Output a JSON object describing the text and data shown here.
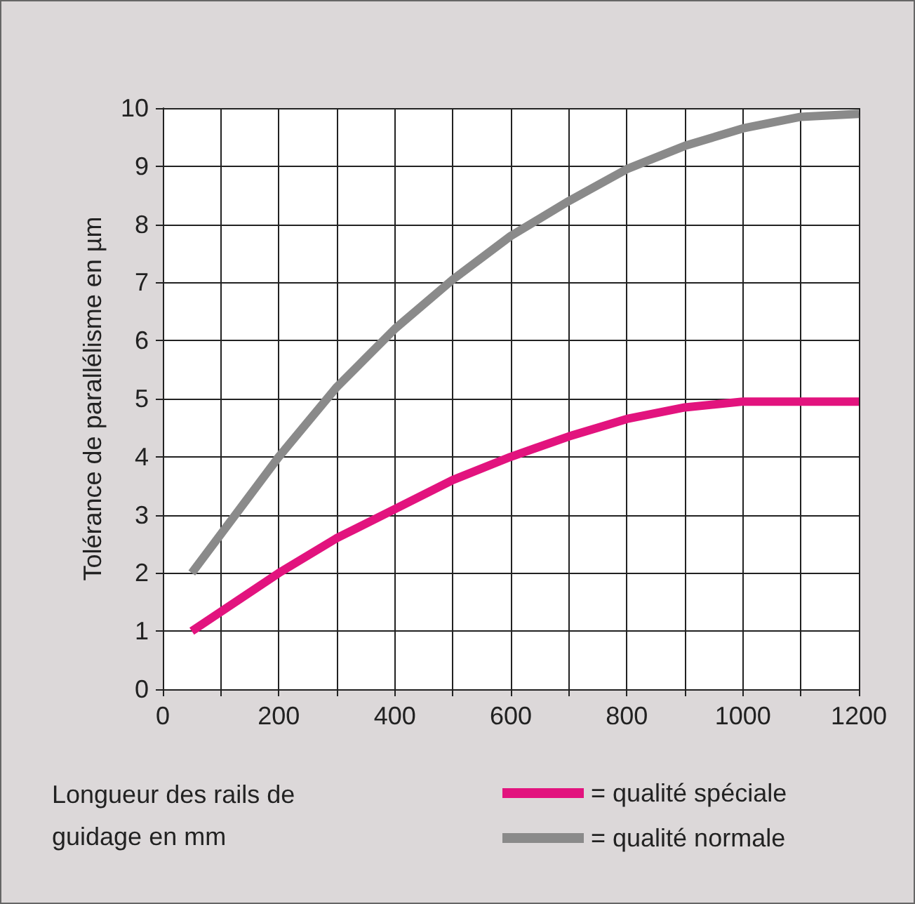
{
  "chart_data": {
    "type": "line",
    "xlabel": "Longueur des rails de guidage en mm",
    "ylabel": "Tolérance de parallélisme en µm",
    "xlim": [
      0,
      1200
    ],
    "xticks": [
      0,
      {
        "value": 100,
        "label": null
      },
      200,
      {
        "value": 300,
        "label": null
      },
      400,
      {
        "value": 500,
        "label": null
      },
      600,
      {
        "value": 700,
        "label": null
      },
      800,
      {
        "value": 900,
        "label": null
      },
      1000,
      {
        "value": 1100,
        "label": null
      },
      1200
    ],
    "ylim": [
      0,
      10
    ],
    "yticks": [
      0,
      1,
      2,
      3,
      4,
      5,
      6,
      7,
      8,
      9,
      10
    ],
    "grid": true,
    "legend": "bottom right",
    "marker": "none",
    "line_style": "solid",
    "series": [
      {
        "name": "= qualité spéciale",
        "color": "#e2137e",
        "x": [
          50,
          200,
          300,
          400,
          500,
          600,
          700,
          800,
          900,
          1000,
          1050,
          1200
        ],
        "values": [
          1.0,
          2.0,
          2.6,
          3.1,
          3.6,
          4.0,
          4.35,
          4.65,
          4.85,
          4.95,
          4.95,
          4.95
        ]
      },
      {
        "name": "= qualité normale",
        "color": "#8a8a8a",
        "x": [
          50,
          200,
          300,
          400,
          500,
          600,
          700,
          800,
          900,
          1000,
          1100,
          1200
        ],
        "values": [
          2.0,
          4.0,
          5.2,
          6.2,
          7.05,
          7.8,
          8.4,
          8.95,
          9.35,
          9.65,
          9.85,
          9.9
        ]
      }
    ]
  }
}
